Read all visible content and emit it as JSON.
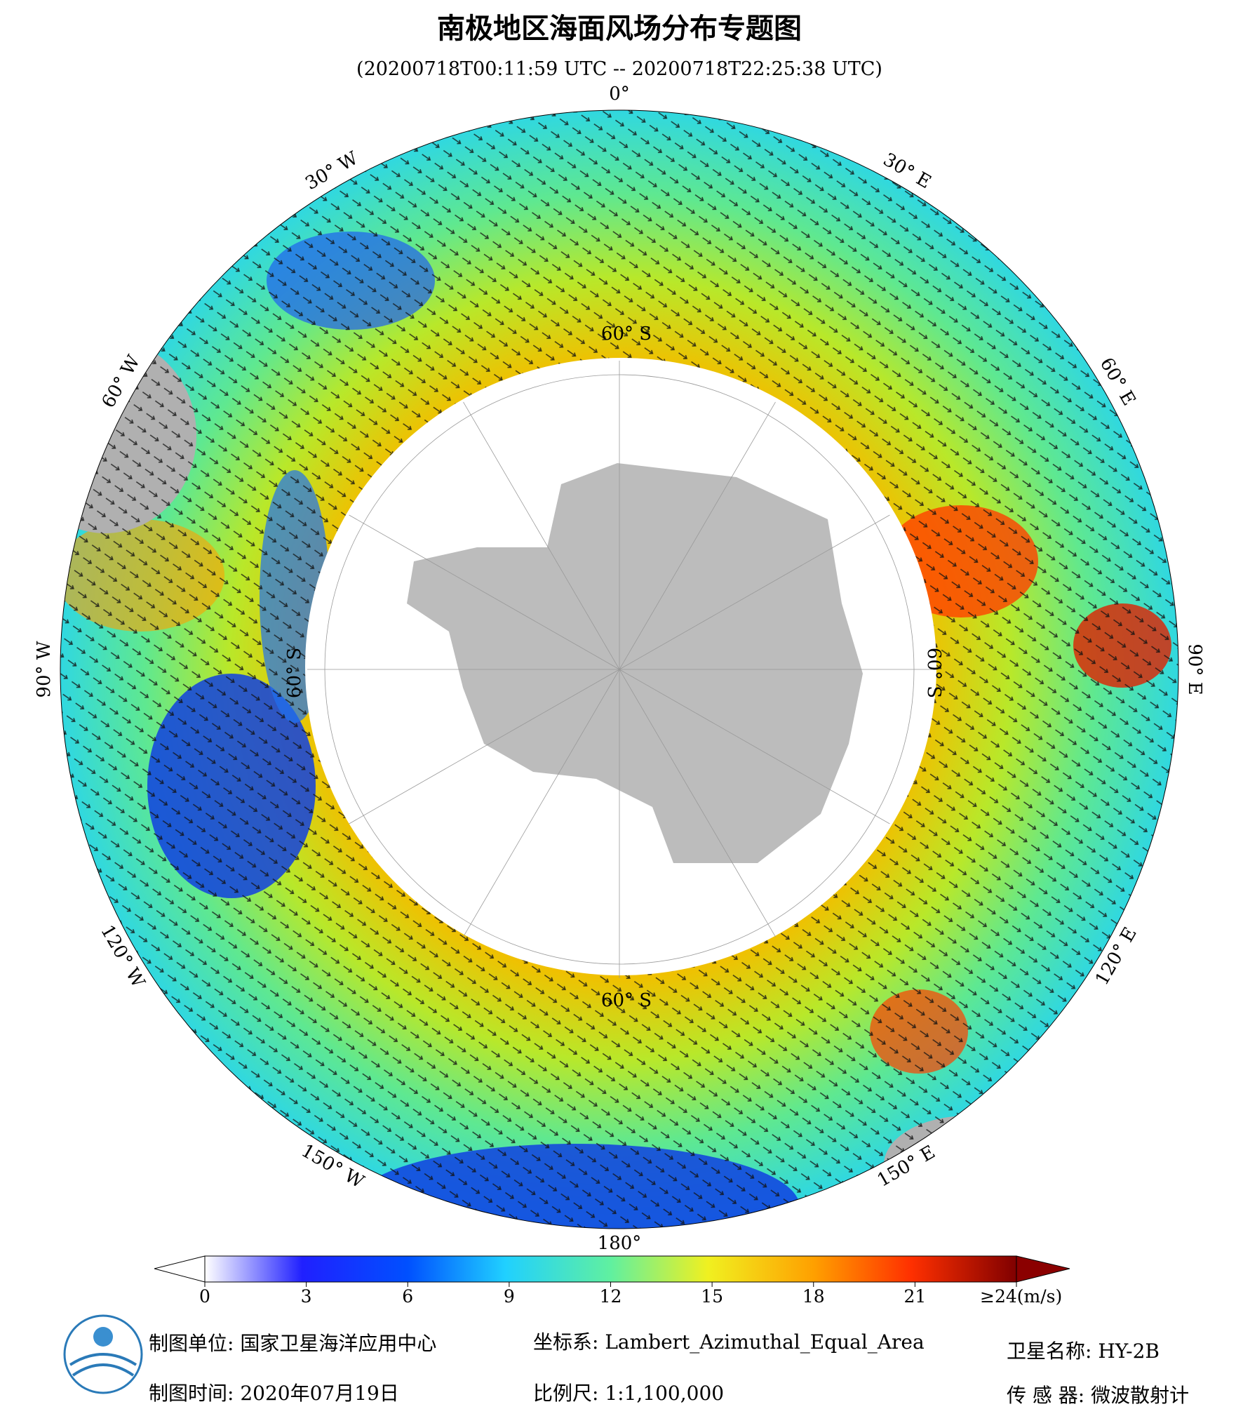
{
  "header": {
    "title": "南极地区海面风场分布专题图",
    "subtitle": "(20200718T00:11:59 UTC -- 20200718T22:25:38 UTC)"
  },
  "map": {
    "graticule_labels": [
      "0°",
      "30° E",
      "60° E",
      "90° E",
      "120° E",
      "150° E",
      "180°",
      "150° W",
      "120° W",
      "90° W",
      "60° W",
      "30° W"
    ],
    "latitude_label": "60° S"
  },
  "colorbar": {
    "range": [
      0,
      24
    ],
    "ticks": [
      0,
      3,
      6,
      9,
      12,
      15,
      18,
      21,
      {
        "value": 24,
        "label": "≥24(m/s)"
      }
    ]
  },
  "footer": {
    "producer": "制图单位: 国家卫星海洋应用中心",
    "date": "制图时间: 2020年07月19日",
    "projection": "坐标系: Lambert_Azimuthal_Equal_Area",
    "scale": "比例尺: 1:1,100,000",
    "satellite": "卫星名称: HY-2B",
    "sensor": "传 感 器: 微波散射计"
  }
}
